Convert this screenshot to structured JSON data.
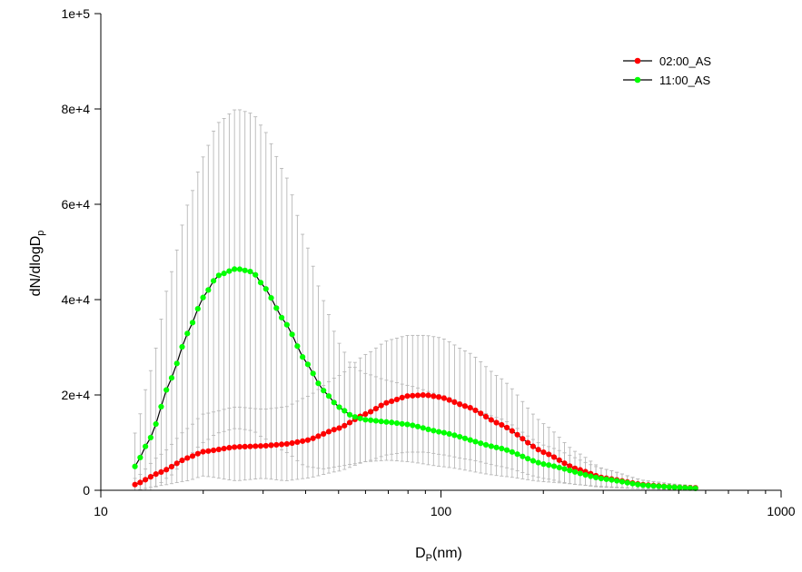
{
  "chart_data": {
    "type": "line",
    "title": "",
    "xlabel": {
      "main": "D",
      "sub": "P",
      "tail": "(nm)"
    },
    "ylabel": {
      "main": "dN/dlogD",
      "sub": "p"
    },
    "x_scale": "log",
    "xlim": [
      10,
      1000
    ],
    "ylim": [
      0,
      100000
    ],
    "x_ticks": [
      10,
      100,
      1000
    ],
    "x_tick_labels": [
      "10",
      "100",
      "1000"
    ],
    "y_ticks": [
      0,
      20000,
      40000,
      60000,
      80000,
      100000
    ],
    "y_tick_labels": [
      "0",
      "2e+4",
      "4e+4",
      "6e+4",
      "8e+4",
      "1e+5"
    ],
    "grid": false,
    "legend_position": "top-right",
    "series": [
      {
        "name": "02:00_AS",
        "color": "#ff0000",
        "x": [
          12.6,
          15,
          18,
          20,
          25,
          30,
          35,
          40,
          50,
          60,
          70,
          80,
          90,
          100,
          120,
          150,
          200,
          250,
          300,
          400,
          500,
          560
        ],
        "y": [
          1200,
          3800,
          6800,
          8100,
          9100,
          9300,
          9700,
          10400,
          13000,
          16000,
          18500,
          19800,
          20000,
          19500,
          17500,
          13800,
          8000,
          4500,
          2600,
          1100,
          600,
          500
        ],
        "error_upper": [
          2500,
          7500,
          13000,
          16000,
          17500,
          17000,
          17500,
          19500,
          24000,
          28500,
          31500,
          32500,
          32500,
          32000,
          29000,
          23500,
          14000,
          8000,
          4500,
          2000,
          1200,
          1000
        ],
        "error_lower": [
          0,
          1000,
          2000,
          3000,
          2000,
          2500,
          2000,
          2500,
          4000,
          6000,
          7500,
          8000,
          8000,
          7500,
          6500,
          5000,
          2500,
          1200,
          600,
          300,
          100,
          100
        ]
      },
      {
        "name": "11:00_AS",
        "color": "#00ff00",
        "x": [
          12.6,
          14,
          16,
          18,
          20,
          22,
          25,
          28,
          30,
          35,
          40,
          45,
          50,
          55,
          60,
          70,
          80,
          100,
          150,
          200,
          300,
          400,
          500,
          560
        ],
        "y": [
          5000,
          11000,
          23000,
          33000,
          40500,
          45000,
          46500,
          45800,
          43000,
          35000,
          27000,
          21000,
          17500,
          15500,
          14800,
          14300,
          13800,
          12200,
          8800,
          5500,
          2400,
          1000,
          600,
          400
        ],
        "error_upper": [
          12000,
          25000,
          45000,
          60000,
          70000,
          77000,
          80000,
          79000,
          76000,
          66000,
          52000,
          40000,
          31000,
          26000,
          24500,
          23000,
          22000,
          20000,
          15000,
          9500,
          4500,
          2000,
          1200,
          900
        ],
        "error_lower": [
          0,
          0,
          3000,
          7000,
          10000,
          12000,
          13000,
          12500,
          11000,
          8000,
          5000,
          4500,
          5000,
          5500,
          6000,
          6300,
          6000,
          5000,
          3000,
          1800,
          800,
          300,
          100,
          0
        ]
      }
    ]
  }
}
